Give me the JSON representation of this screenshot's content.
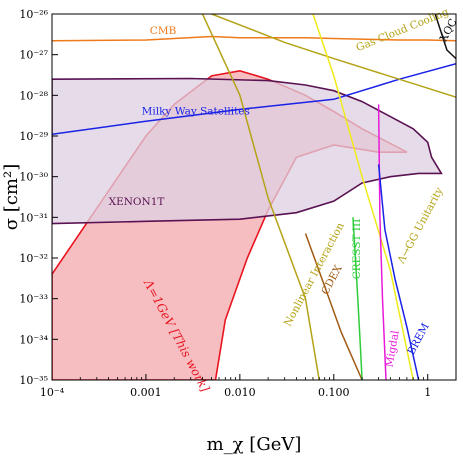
{
  "chart_data": {
    "type": "line",
    "xscale": "log",
    "yscale": "log",
    "xlim": [
      0.0001,
      2
    ],
    "ylim": [
      1e-35,
      1e-26
    ],
    "xlabel": "m_χ [GeV]",
    "ylabel": "σ [cm²]",
    "x_ticks": [
      {
        "value": 0.0001,
        "label": "10⁻⁴"
      },
      {
        "value": 0.001,
        "label": "0.001"
      },
      {
        "value": 0.01,
        "label": "0.010"
      },
      {
        "value": 0.1,
        "label": "0.100"
      },
      {
        "value": 1,
        "label": "1"
      }
    ],
    "y_ticks": [
      {
        "value": 1e-35,
        "label": "10⁻³⁵"
      },
      {
        "value": 1e-34,
        "label": "10⁻³⁴"
      },
      {
        "value": 1e-33,
        "label": "10⁻³³"
      },
      {
        "value": 1e-32,
        "label": "10⁻³²"
      },
      {
        "value": 1e-31,
        "label": "10⁻³¹"
      },
      {
        "value": 1e-30,
        "label": "10⁻³⁰"
      },
      {
        "value": 1e-29,
        "label": "10⁻²⁹"
      },
      {
        "value": 1e-28,
        "label": "10⁻²⁸"
      },
      {
        "value": 1e-27,
        "label": "10⁻²⁷"
      },
      {
        "value": 1e-26,
        "label": "10⁻²⁶"
      }
    ],
    "series": [
      {
        "name": "Λ=1GeV [This work]",
        "kind": "region",
        "stroke": "#e8141e",
        "fill": "#f4a3a8",
        "points": [
          [
            0.0001,
            1e-35
          ],
          [
            0.0001,
            4e-33
          ],
          [
            0.001,
            1e-29
          ],
          [
            0.002,
            6e-29
          ],
          [
            0.005,
            3e-28
          ],
          [
            0.01,
            4e-28
          ],
          [
            0.02,
            2.5e-28
          ],
          [
            0.05,
            1e-28
          ],
          [
            0.1,
            4e-29
          ],
          [
            0.2,
            1.5e-29
          ],
          [
            0.5,
            5e-30
          ],
          [
            0.6,
            4e-30
          ],
          [
            0.3,
            4e-30
          ],
          [
            0.1,
            6e-30
          ],
          [
            0.04,
            3e-30
          ],
          [
            0.02,
            1.5e-31
          ],
          [
            0.012,
            1e-32
          ],
          [
            0.007,
            3e-34
          ],
          [
            0.0055,
            1e-35
          ]
        ]
      },
      {
        "name": "XENON1T",
        "kind": "region",
        "stroke": "#5a1252",
        "fill": "#ddd0e2",
        "points": [
          [
            0.0001,
            2.5e-28
          ],
          [
            0.003,
            2.6e-28
          ],
          [
            0.02,
            2.3e-28
          ],
          [
            0.05,
            1.8e-28
          ],
          [
            0.1,
            1.3e-28
          ],
          [
            0.2,
            7e-29
          ],
          [
            0.4,
            3e-29
          ],
          [
            0.7,
            1.5e-29
          ],
          [
            1,
            7e-30
          ],
          [
            1.1,
            3e-30
          ],
          [
            1.4,
            1.2e-30
          ],
          [
            0.8,
            1.2e-30
          ],
          [
            0.4,
            1e-30
          ],
          [
            0.2,
            7e-31
          ],
          [
            0.1,
            2.5e-31
          ],
          [
            0.04,
            1.3e-31
          ],
          [
            0.01,
            9e-32
          ],
          [
            0.001,
            8e-32
          ],
          [
            0.0001,
            7e-32
          ]
        ]
      },
      {
        "name": "CMB",
        "kind": "line",
        "stroke": "#ef7a1a",
        "points": [
          [
            0.0001,
            2.2e-27
          ],
          [
            0.001,
            2.3e-27
          ],
          [
            0.005,
            2.8e-27
          ],
          [
            0.01,
            2.6e-27
          ],
          [
            0.05,
            2.6e-27
          ],
          [
            0.1,
            2.5e-27
          ],
          [
            0.5,
            2.3e-27
          ],
          [
            1,
            2.3e-27
          ],
          [
            2,
            2.2e-27
          ]
        ]
      },
      {
        "name": "Milky Way Satellites",
        "kind": "line",
        "stroke": "#1a22e6",
        "points": [
          [
            0.0001,
            1.1e-29
          ],
          [
            0.001,
            2.3e-29
          ],
          [
            0.01,
            4.5e-29
          ],
          [
            0.1,
            8e-29
          ],
          [
            0.5,
            2.5e-28
          ],
          [
            2,
            6e-28
          ]
        ]
      },
      {
        "name": "Gas Cloud Cooling",
        "kind": "line",
        "stroke": "#b5a317",
        "points": [
          [
            0.005,
            1e-26
          ],
          [
            0.03,
            2e-27
          ],
          [
            0.1,
            8e-28
          ],
          [
            1,
            1.5e-28
          ],
          [
            2,
            9e-29
          ]
        ]
      },
      {
        "name": "Nonlinear Interaction",
        "kind": "line",
        "stroke": "#b5a317",
        "points": [
          [
            0.004,
            1e-26
          ],
          [
            0.01,
            1e-28
          ],
          [
            0.02,
            3e-31
          ],
          [
            0.05,
            1e-33
          ],
          [
            0.07,
            1e-35
          ]
        ]
      },
      {
        "name": "Λ→GG Unitarity",
        "kind": "line",
        "stroke": "#f0ea1a",
        "points": [
          [
            0.06,
            1e-26
          ],
          [
            0.1,
            3e-28
          ],
          [
            0.2,
            1e-30
          ],
          [
            0.4,
            5e-33
          ],
          [
            0.7,
            1e-35
          ]
        ]
      },
      {
        "name": "CDEX",
        "kind": "line",
        "stroke": "#a05a14",
        "points": [
          [
            0.05,
            4e-32
          ],
          [
            0.08,
            2e-33
          ],
          [
            0.12,
            1.5e-34
          ],
          [
            0.2,
            1e-35
          ]
        ]
      },
      {
        "name": "CRESST III",
        "kind": "line",
        "stroke": "#2ecc3a",
        "points": [
          [
            0.16,
            1e-31
          ],
          [
            0.17,
            1e-32
          ],
          [
            0.18,
            1e-33
          ],
          [
            0.19,
            1e-34
          ],
          [
            0.2,
            1e-35
          ]
        ]
      },
      {
        "name": "Migdal",
        "kind": "line",
        "stroke": "#e81ad8",
        "points": [
          [
            0.3,
            6e-29
          ],
          [
            0.31,
            1e-31
          ],
          [
            0.33,
            1e-33
          ],
          [
            0.36,
            1e-35
          ]
        ]
      },
      {
        "name": "BREM",
        "kind": "line",
        "stroke": "#1a22e6",
        "points": [
          [
            0.3,
            2e-30
          ],
          [
            0.35,
            5e-32
          ],
          [
            0.45,
            3e-33
          ],
          [
            0.6,
            2e-34
          ],
          [
            0.8,
            1e-35
          ]
        ]
      },
      {
        "name": "XQC",
        "kind": "line",
        "stroke": "#111111",
        "points": [
          [
            1.2,
            1e-26
          ],
          [
            1.6,
            1.3e-27
          ],
          [
            2,
            8e-28
          ]
        ]
      }
    ],
    "annotations": [
      {
        "text": "CMB",
        "x": 0.0011,
        "y": 3.2e-27,
        "color": "#ef7a1a",
        "rotate": 0
      },
      {
        "text": "Gas Cloud Cooling",
        "x": 0.18,
        "y": 1.2e-27,
        "color": "#b5a317",
        "rotate": 22
      },
      {
        "text": "Milky Way Satellites",
        "x": 0.0009,
        "y": 3.4e-29,
        "color": "#1a22e6",
        "rotate": 0
      },
      {
        "text": "XENON1T",
        "x": 0.0004,
        "y": 2e-31,
        "color": "#5a1252",
        "rotate": 0
      },
      {
        "text": "Λ=1GeV [This work]",
        "x": 0.00095,
        "y": 2.5e-33,
        "color": "#e8141e",
        "rotate": -62,
        "size": 12
      },
      {
        "text": "Nonlinear Interaction",
        "x": 0.034,
        "y": 2e-34,
        "color": "#b5a317",
        "rotate": 62
      },
      {
        "text": "CDEX",
        "x": 0.085,
        "y": 1.2e-33,
        "color": "#a05a14",
        "rotate": 62
      },
      {
        "text": "CRESST III",
        "x": 0.19,
        "y": 3e-33,
        "color": "#2ecc3a",
        "rotate": 90
      },
      {
        "text": "Λ→GG Unitarity",
        "x": 0.55,
        "y": 7e-33,
        "color": "#b5a317",
        "rotate": 62
      },
      {
        "text": "BREM",
        "x": 0.7,
        "y": 4e-35,
        "color": "#1a22e6",
        "rotate": 62
      },
      {
        "text": "Migdal",
        "x": 0.42,
        "y": 2e-35,
        "color": "#e81ad8",
        "rotate": 80
      },
      {
        "text": "XQC",
        "x": 1.55,
        "y": 2e-27,
        "color": "#111111",
        "rotate": 62
      }
    ]
  }
}
